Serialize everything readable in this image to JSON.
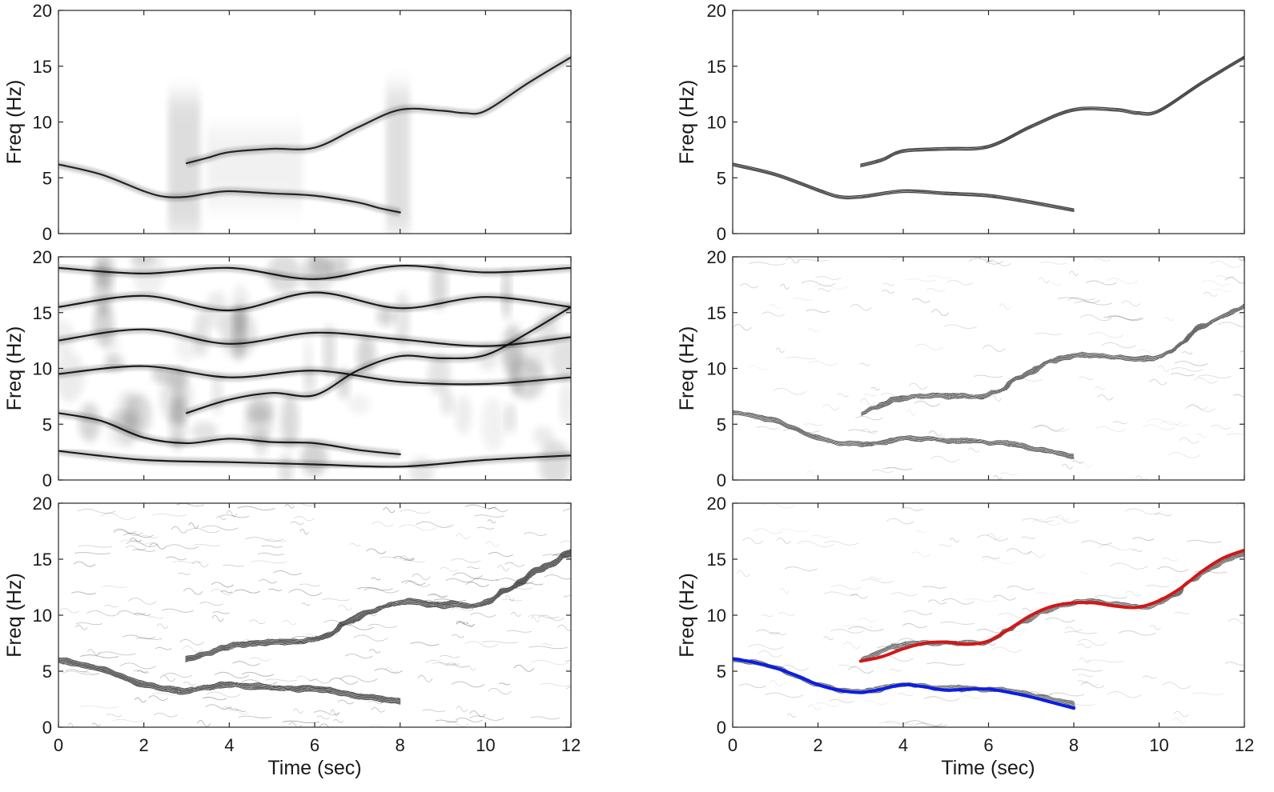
{
  "figure": {
    "layout": "3 rows x 2 columns of time-frequency panels"
  },
  "chart_data": [
    {
      "type": "heatmap",
      "panel": "row-1-left",
      "colormap": "grayscale",
      "title": "",
      "xlabel": "",
      "ylabel": "Freq (Hz)",
      "xlim": [
        0,
        12
      ],
      "ylim": [
        0,
        20
      ],
      "xticks": [
        "0",
        "2",
        "4",
        "6",
        "8",
        "10",
        "12"
      ],
      "yticks": [
        "0",
        "5",
        "10",
        "15",
        "20"
      ],
      "show_xticklabels": false,
      "traces": [
        {
          "name": "lower component",
          "x": [
            0,
            1,
            2,
            2.5,
            3,
            3.5,
            4,
            5,
            6,
            7,
            7.5,
            8
          ],
          "y": [
            6.2,
            5.3,
            3.8,
            3.3,
            3.3,
            3.6,
            3.8,
            3.6,
            3.4,
            2.8,
            2.3,
            1.9
          ]
        },
        {
          "name": "upper component",
          "x": [
            3,
            3.5,
            4,
            5,
            6,
            7,
            8,
            9,
            9.5,
            10,
            11,
            12
          ],
          "y": [
            6.3,
            6.8,
            7.3,
            7.6,
            7.7,
            9.5,
            11.1,
            11.0,
            10.8,
            11.0,
            13.5,
            15.8
          ]
        }
      ],
      "annotations": [
        "vertical smearing near t=3 s",
        "vertical smearing near t=8 s"
      ]
    },
    {
      "type": "heatmap",
      "panel": "row-1-right",
      "colormap": "grayscale",
      "title": "",
      "xlabel": "",
      "ylabel": "Freq (Hz)",
      "xlim": [
        0,
        12
      ],
      "ylim": [
        0,
        20
      ],
      "xticks": [
        "0",
        "2",
        "4",
        "6",
        "8",
        "10",
        "12"
      ],
      "yticks": [
        "0",
        "5",
        "10",
        "15",
        "20"
      ],
      "show_xticklabels": false,
      "traces": [
        {
          "name": "lower component",
          "x": [
            0,
            1,
            2,
            2.5,
            3,
            4,
            5,
            6,
            7,
            8
          ],
          "y": [
            6.2,
            5.3,
            3.9,
            3.3,
            3.3,
            3.8,
            3.6,
            3.4,
            2.8,
            2.1
          ]
        },
        {
          "name": "upper component",
          "x": [
            3,
            3.5,
            4,
            5,
            6,
            7,
            8,
            9,
            9.5,
            10,
            11,
            12
          ],
          "y": [
            6.1,
            6.6,
            7.4,
            7.6,
            7.8,
            9.6,
            11.1,
            11.1,
            10.8,
            11.0,
            13.5,
            15.8
          ]
        }
      ]
    },
    {
      "type": "heatmap",
      "panel": "row-2-left",
      "colormap": "grayscale",
      "title": "",
      "xlabel": "",
      "ylabel": "Freq (Hz)",
      "xlim": [
        0,
        12
      ],
      "ylim": [
        0,
        20
      ],
      "xticks": [
        "0",
        "2",
        "4",
        "6",
        "8",
        "10",
        "12"
      ],
      "yticks": [
        "0",
        "5",
        "10",
        "15",
        "20"
      ],
      "show_xticklabels": false,
      "traces": [
        {
          "name": "lower component",
          "x": [
            0,
            1,
            2,
            3,
            4,
            5,
            6,
            7,
            8
          ],
          "y": [
            6.0,
            5.3,
            3.8,
            3.3,
            3.7,
            3.4,
            3.3,
            2.7,
            2.3
          ]
        },
        {
          "name": "upper component",
          "x": [
            3,
            4,
            5,
            6,
            7,
            8,
            9,
            10,
            11,
            12
          ],
          "y": [
            6.0,
            7.2,
            7.8,
            7.6,
            9.8,
            11.1,
            10.9,
            11.2,
            13.2,
            15.5
          ]
        },
        {
          "name": "interference ripple 1",
          "x": [
            0,
            2,
            4,
            6,
            8,
            10,
            12
          ],
          "y": [
            19.0,
            18.5,
            19.0,
            18.0,
            19.2,
            18.6,
            19.0
          ]
        },
        {
          "name": "interference ripple 2",
          "x": [
            0,
            2,
            4,
            6,
            8,
            10,
            12
          ],
          "y": [
            15.5,
            16.5,
            15.2,
            16.8,
            15.4,
            16.4,
            15.5
          ]
        },
        {
          "name": "interference ripple 3",
          "x": [
            0,
            2,
            4,
            6,
            8,
            10,
            12
          ],
          "y": [
            12.5,
            13.5,
            12.2,
            13.2,
            12.6,
            12.0,
            12.8
          ]
        },
        {
          "name": "interference ripple 4",
          "x": [
            0,
            2,
            4,
            6,
            8,
            10,
            12
          ],
          "y": [
            9.5,
            10.2,
            9.2,
            9.8,
            8.8,
            8.6,
            9.2
          ]
        },
        {
          "name": "interference ripple 5",
          "x": [
            0,
            2,
            4,
            6,
            8,
            10,
            12
          ],
          "y": [
            2.6,
            1.8,
            1.6,
            1.4,
            1.2,
            1.8,
            2.2
          ]
        }
      ]
    },
    {
      "type": "heatmap",
      "panel": "row-2-right",
      "colormap": "grayscale",
      "title": "",
      "xlabel": "",
      "ylabel": "Freq (Hz)",
      "xlim": [
        0,
        12
      ],
      "ylim": [
        0,
        20
      ],
      "xticks": [
        "0",
        "2",
        "4",
        "6",
        "8",
        "10",
        "12"
      ],
      "yticks": [
        "0",
        "5",
        "10",
        "15",
        "20"
      ],
      "show_xticklabels": false,
      "traces": [
        {
          "name": "lower component",
          "x": [
            0,
            1,
            2,
            3,
            4,
            5,
            6,
            7,
            8
          ],
          "y": [
            6.1,
            5.3,
            3.8,
            3.2,
            3.8,
            3.5,
            3.4,
            2.9,
            2.1
          ]
        },
        {
          "name": "upper component",
          "x": [
            3,
            4,
            5,
            6,
            7,
            8,
            9,
            10,
            11,
            12
          ],
          "y": [
            6.0,
            7.4,
            7.5,
            7.7,
            9.8,
            11.1,
            11.0,
            11.0,
            13.7,
            15.6
          ]
        }
      ]
    },
    {
      "type": "heatmap",
      "panel": "row-3-left",
      "colormap": "grayscale",
      "title": "",
      "xlabel": "Time (sec)",
      "ylabel": "Freq (Hz)",
      "xlim": [
        0,
        12
      ],
      "ylim": [
        0,
        20
      ],
      "xticks": [
        "0",
        "2",
        "4",
        "6",
        "8",
        "10",
        "12"
      ],
      "yticks": [
        "0",
        "5",
        "10",
        "15",
        "20"
      ],
      "show_xticklabels": true,
      "traces": [
        {
          "name": "lower component",
          "x": [
            0,
            1,
            2,
            3,
            4,
            5,
            6,
            7,
            8
          ],
          "y": [
            6.0,
            5.2,
            3.8,
            3.3,
            3.8,
            3.5,
            3.4,
            2.8,
            2.3
          ]
        },
        {
          "name": "upper component",
          "x": [
            3,
            4,
            5,
            6,
            7,
            8,
            9,
            10,
            11,
            12
          ],
          "y": [
            6.0,
            7.2,
            7.6,
            7.8,
            9.8,
            11.2,
            10.9,
            11.2,
            13.5,
            15.6
          ]
        }
      ]
    },
    {
      "type": "heatmap",
      "panel": "row-3-right",
      "colormap": "grayscale",
      "title": "",
      "xlabel": "Time (sec)",
      "ylabel": "Freq (Hz)",
      "xlim": [
        0,
        12
      ],
      "ylim": [
        0,
        20
      ],
      "xticks": [
        "0",
        "2",
        "4",
        "6",
        "8",
        "10",
        "12"
      ],
      "yticks": [
        "0",
        "5",
        "10",
        "15",
        "20"
      ],
      "show_xticklabels": true,
      "traces": [
        {
          "name": "lower component",
          "x": [
            0,
            1,
            2,
            3,
            4,
            5,
            6,
            7,
            8
          ],
          "y": [
            6.1,
            5.3,
            3.8,
            3.2,
            3.8,
            3.5,
            3.4,
            2.9,
            2.1
          ]
        },
        {
          "name": "upper component",
          "x": [
            3,
            4,
            5,
            6,
            7,
            8,
            9,
            10,
            11,
            12
          ],
          "y": [
            6.0,
            7.4,
            7.5,
            7.7,
            9.8,
            11.1,
            11.0,
            11.0,
            13.7,
            15.6
          ]
        }
      ],
      "series": [
        {
          "name": "estimated lower component",
          "color": "#0a1ee6",
          "x": [
            0,
            0.5,
            1,
            1.5,
            2,
            2.5,
            3,
            3.5,
            4,
            4.5,
            5,
            5.5,
            6,
            6.5,
            7,
            7.5,
            8
          ],
          "y": [
            6.1,
            5.8,
            5.3,
            4.6,
            3.8,
            3.3,
            3.1,
            3.4,
            3.8,
            3.6,
            3.3,
            3.4,
            3.4,
            3.1,
            2.7,
            2.2,
            1.7
          ]
        },
        {
          "name": "estimated upper component",
          "color": "#d01818",
          "x": [
            3,
            3.5,
            4,
            4.5,
            5,
            5.5,
            6,
            6.5,
            7,
            7.5,
            8,
            8.5,
            9,
            9.5,
            10,
            10.5,
            11,
            11.5,
            12
          ],
          "y": [
            5.9,
            6.3,
            7.0,
            7.5,
            7.6,
            7.4,
            7.7,
            8.8,
            10.0,
            10.8,
            11.1,
            11.1,
            10.8,
            10.7,
            11.3,
            12.4,
            13.9,
            15.1,
            15.8
          ]
        }
      ]
    }
  ]
}
